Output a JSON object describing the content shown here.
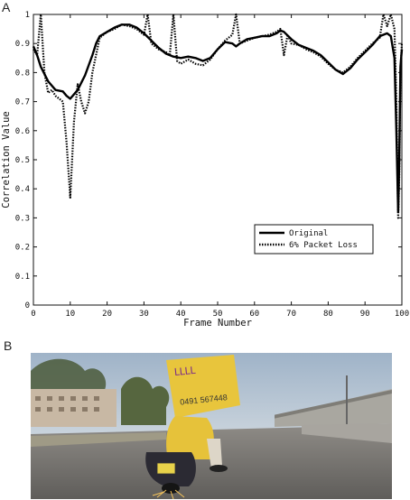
{
  "panel_labels": {
    "a": "A",
    "b": "B"
  },
  "chart_data": {
    "type": "line",
    "title": "",
    "xlabel": "Frame Number",
    "ylabel": "Correlation Value",
    "xlim": [
      0,
      100
    ],
    "ylim": [
      0,
      1
    ],
    "x_ticks": [
      "0",
      "10",
      "20",
      "30",
      "40",
      "50",
      "60",
      "70",
      "80",
      "90",
      "100"
    ],
    "y_ticks": [
      "0",
      "0.1",
      "0.2",
      "0.3",
      "0.4",
      "0.5",
      "0.6",
      "0.7",
      "0.8",
      "0.9",
      "1"
    ],
    "legend_position": "lower-right",
    "grid": false,
    "series": [
      {
        "name": "Original",
        "style": "solid",
        "x": [
          0,
          1,
          2,
          4,
          6,
          8,
          9,
          10,
          12,
          14,
          16,
          17,
          18,
          20,
          22,
          24,
          26,
          28,
          30,
          32,
          34,
          36,
          38,
          40,
          42,
          44,
          46,
          48,
          50,
          52,
          54,
          55,
          56,
          58,
          60,
          62,
          64,
          66,
          67,
          68,
          70,
          72,
          74,
          76,
          78,
          80,
          82,
          84,
          86,
          88,
          90,
          92,
          94,
          96,
          97,
          98,
          98.5,
          99,
          99.3,
          99.6,
          100
        ],
        "y": [
          0.89,
          0.86,
          0.82,
          0.77,
          0.74,
          0.735,
          0.72,
          0.71,
          0.74,
          0.79,
          0.86,
          0.9,
          0.925,
          0.94,
          0.955,
          0.965,
          0.965,
          0.955,
          0.935,
          0.91,
          0.885,
          0.865,
          0.855,
          0.85,
          0.855,
          0.85,
          0.84,
          0.85,
          0.88,
          0.905,
          0.9,
          0.89,
          0.9,
          0.915,
          0.92,
          0.925,
          0.925,
          0.935,
          0.945,
          0.94,
          0.915,
          0.895,
          0.885,
          0.875,
          0.86,
          0.835,
          0.81,
          0.795,
          0.815,
          0.845,
          0.87,
          0.895,
          0.925,
          0.935,
          0.925,
          0.85,
          0.6,
          0.32,
          0.5,
          0.82,
          0.88
        ]
      },
      {
        "name": "6% Packet Loss",
        "style": "dotted",
        "x": [
          0,
          1,
          2,
          3,
          4,
          5,
          6,
          8,
          9,
          10,
          11,
          12,
          13,
          14,
          15,
          16,
          18,
          20,
          22,
          24,
          26,
          28,
          30,
          31,
          32,
          34,
          36,
          37,
          38,
          39,
          40,
          42,
          44,
          46,
          48,
          50,
          52,
          54,
          55,
          56,
          58,
          60,
          62,
          64,
          66,
          67,
          68,
          69,
          70,
          72,
          74,
          76,
          78,
          80,
          82,
          84,
          86,
          88,
          90,
          92,
          94,
          95,
          96,
          97,
          98,
          98.5,
          99,
          99.3,
          99.6,
          100
        ],
        "y": [
          0.88,
          0.86,
          1.0,
          0.8,
          0.73,
          0.74,
          0.72,
          0.7,
          0.56,
          0.37,
          0.63,
          0.76,
          0.7,
          0.66,
          0.7,
          0.8,
          0.92,
          0.94,
          0.95,
          0.965,
          0.96,
          0.95,
          0.93,
          1.0,
          0.9,
          0.88,
          0.87,
          0.86,
          1.0,
          0.84,
          0.83,
          0.845,
          0.83,
          0.825,
          0.845,
          0.88,
          0.91,
          0.93,
          1.0,
          0.9,
          0.91,
          0.92,
          0.925,
          0.93,
          0.94,
          0.95,
          0.86,
          0.93,
          0.9,
          0.895,
          0.88,
          0.87,
          0.855,
          0.83,
          0.81,
          0.8,
          0.82,
          0.85,
          0.875,
          0.9,
          0.92,
          1.0,
          0.96,
          1.0,
          0.95,
          0.7,
          0.3,
          0.45,
          0.8,
          0.9
        ]
      }
    ]
  },
  "colors": {
    "axis": "#111111",
    "line": "#000000",
    "sky": "#b8c6d6",
    "road": "#7d7b78",
    "sign": "#e8c53c"
  }
}
